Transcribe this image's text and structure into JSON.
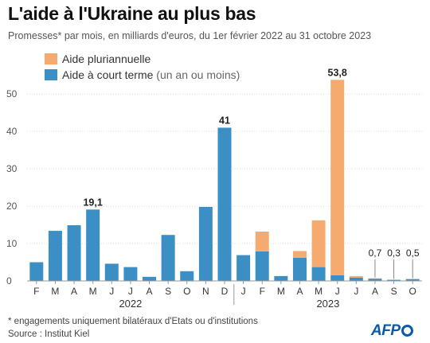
{
  "title": "L'aide à l'Ukraine au plus bas",
  "subtitle": "Promesses* par mois, en milliards d'euros, du 1er février 2022 au 31 octobre 2023",
  "footnote": "* engagements uniquement bilatéraux d'Etats ou d'institutions",
  "source": "Source : Institut Kiel",
  "logo_text": "AFP",
  "colors": {
    "short_term": "#3b8fc4",
    "multi_year": "#f5aa70",
    "axis": "#999999",
    "grid": "#dddddd"
  },
  "chart_data": {
    "type": "bar",
    "stacked": true,
    "categories": [
      "F",
      "M",
      "A",
      "M",
      "J",
      "J",
      "A",
      "S",
      "O",
      "N",
      "D",
      "J",
      "F",
      "M",
      "A",
      "M",
      "J",
      "J",
      "A",
      "S",
      "O"
    ],
    "years": [
      {
        "label": "2022"
      },
      {
        "label": "2023"
      }
    ],
    "series": [
      {
        "name": "Aide à court terme",
        "name_suffix": "(un an ou moins)",
        "values": [
          5.0,
          13.4,
          14.9,
          19.1,
          4.6,
          3.7,
          1.1,
          12.3,
          2.6,
          19.8,
          41.0,
          6.9,
          7.9,
          1.3,
          6.2,
          3.7,
          1.5,
          0.9,
          0.6,
          0.3,
          0.5
        ]
      },
      {
        "name": "Aide pluriannuelle",
        "values": [
          0,
          0,
          0,
          0,
          0,
          0,
          0,
          0,
          0,
          0,
          0,
          0,
          5.3,
          0,
          1.8,
          12.5,
          52.3,
          0.4,
          0.1,
          0.0,
          0.0
        ]
      }
    ],
    "bar_labels": {
      "3": "19,1",
      "10": "41",
      "16": "53,8",
      "18": "0,7",
      "19": "0,3",
      "20": "0,5"
    },
    "yticks": [
      0,
      10,
      20,
      30,
      40,
      50
    ],
    "ylim": [
      0,
      56
    ],
    "grid": true,
    "legend_placement": "top-center"
  }
}
